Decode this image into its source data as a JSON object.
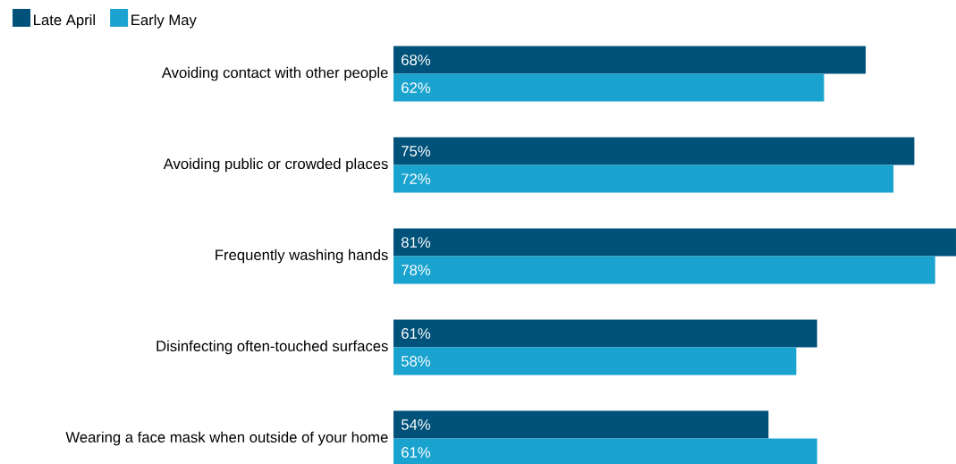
{
  "chart_data": {
    "type": "bar",
    "orientation": "horizontal",
    "legend": "top left",
    "categories": [
      "Avoiding contact with other people",
      "Avoiding public or crowded places",
      "Frequently washing hands",
      "Disinfecting often-touched surfaces",
      "Wearing a face mask when outside of your home"
    ],
    "series": [
      {
        "name": "Late April",
        "color": "#00527a",
        "values": [
          68,
          75,
          81,
          61,
          54
        ],
        "value_labels": [
          "68%",
          "75%",
          "81%",
          "61%",
          "54%"
        ]
      },
      {
        "name": "Early May",
        "color": "#1aa3cf",
        "values": [
          62,
          72,
          78,
          58,
          61
        ],
        "value_labels": [
          "62%",
          "72%",
          "78%",
          "58%",
          "61%"
        ]
      }
    ]
  }
}
